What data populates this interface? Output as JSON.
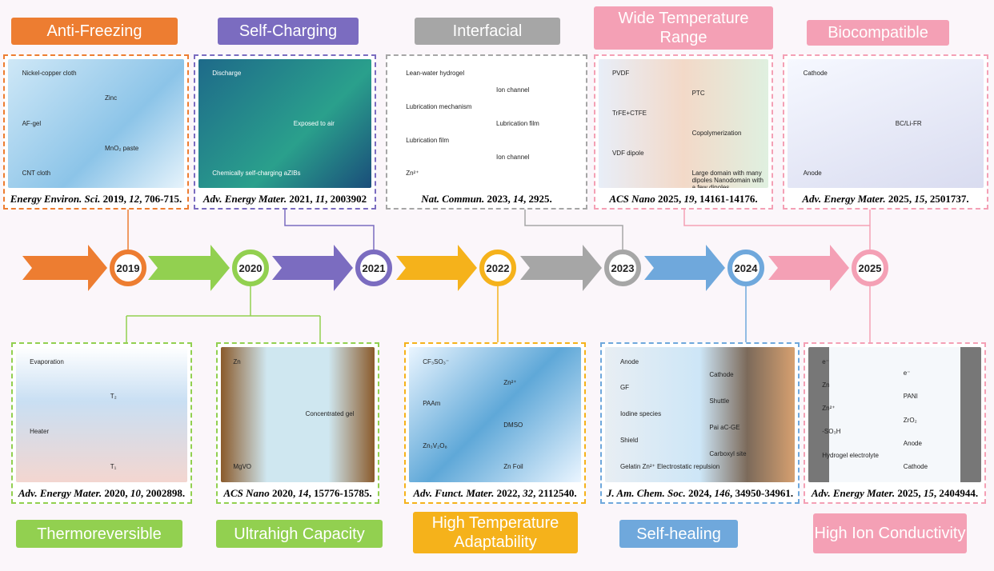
{
  "colors": {
    "orange": "#ed7d31",
    "green": "#92d050",
    "purple": "#7b6cc0",
    "yellow": "#f5b21b",
    "gray": "#a6a6a6",
    "blue": "#6fa8dc",
    "pink": "#f4a0b5"
  },
  "years": [
    "2019",
    "2020",
    "2021",
    "2022",
    "2023",
    "2024",
    "2025"
  ],
  "top": [
    {
      "tag": "Anti-Freezing",
      "journal": "Energy Environ. Sci.",
      "year": "2019",
      "vol": "12",
      "pages": "706-715.",
      "labels": [
        "Nickel-copper cloth",
        "Zinc",
        "AF-gel",
        "MnO₂ paste",
        "CNT cloth"
      ]
    },
    {
      "tag": "Self-Charging",
      "journal": "Adv. Energy Mater.",
      "year": "2021",
      "vol": "11",
      "pages": "2003902",
      "labels": [
        "Discharge",
        "Exposed to air",
        "Chemically self-charging aZIBs"
      ]
    },
    {
      "tag": "Interfacial",
      "journal": "Nat. Commun.",
      "year": "2023",
      "vol": "14",
      "pages": "2925.",
      "labels": [
        "Lean-water hydrogel",
        "Ion channel",
        "Lubrication mechanism",
        "Lubrication film",
        "Lubrication film",
        "Ion channel",
        "Zn²⁺"
      ]
    },
    {
      "tag": "Wide Temperature Range",
      "journal": "ACS Nano",
      "year": "2025",
      "vol": "19",
      "pages": "14161-14176.",
      "labels": [
        "PVDF",
        "PTC",
        "TrFE+CTFE",
        "Copolymerization",
        "VDF dipole",
        "Large domain with many dipoles Nanodomain with a few dipoles"
      ]
    },
    {
      "tag": "Biocompatible",
      "journal": "Adv. Energy Mater.",
      "year": "2025",
      "vol": "15",
      "pages": "2501737.",
      "labels": [
        "Cathode",
        "BC/Li-FR",
        "Anode"
      ]
    }
  ],
  "bottom": [
    {
      "tag": "Thermoreversible",
      "journal": "Adv. Energy Mater.",
      "year": "2020",
      "vol": "10",
      "pages": "2002898.",
      "labels": [
        "Evaporation",
        "T₂",
        "Heater",
        "T₁"
      ]
    },
    {
      "tag": "Ultrahigh Capacity",
      "journal": "ACS Nano",
      "year": "2020",
      "vol": "14",
      "pages": "15776-15785.",
      "labels": [
        "Zn",
        "Concentrated gel",
        "MgVO"
      ]
    },
    {
      "tag": "High Temperature Adaptability",
      "journal": "Adv. Funct. Mater.",
      "year": "2022",
      "vol": "32",
      "pages": "2112540.",
      "labels": [
        "CF₃SO₃⁻",
        "Zn²⁺",
        "PAAm",
        "DMSO",
        "Zn₃V₂O₈",
        "Zn Foil"
      ]
    },
    {
      "tag": "Self-healing",
      "journal": "J. Am. Chem. Soc.",
      "year": "2024",
      "vol": "146",
      "pages": "34950-34961.",
      "labels": [
        "Anode",
        "Cathode",
        "GF",
        "Shuttle",
        "Iodine species",
        "Pai aC-GE",
        "Shield",
        "Carboxyl site",
        "Gelatin  Zn²⁺  Electrostatic repulsion"
      ]
    },
    {
      "tag": "High Ion Conductivity",
      "journal": "Adv. Energy Mater.",
      "year": "2025",
      "vol": "15",
      "pages": "2404944.",
      "labels": [
        "e⁻",
        "e⁻",
        "Zn",
        "PANI",
        "Zn²⁺",
        "ZrO₂",
        "-SO₃H",
        "Anode",
        "Hydrogel electrolyte",
        "Cathode"
      ]
    }
  ]
}
